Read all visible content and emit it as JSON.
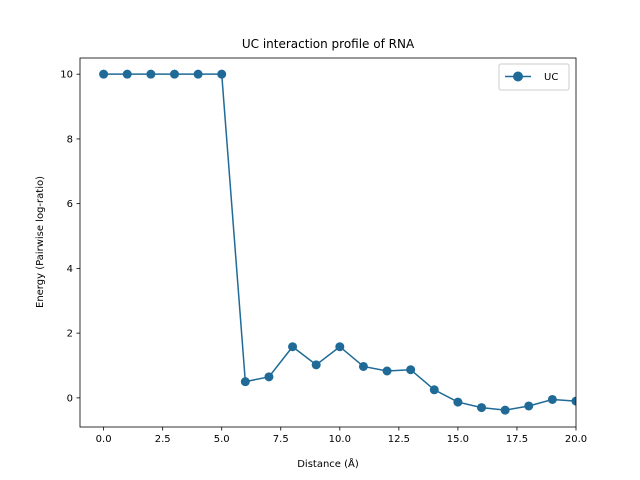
{
  "chart_data": {
    "type": "line",
    "title": "UC interaction profile of  RNA",
    "xlabel": "Distance (Å)",
    "ylabel": "Energy (Pairwise log-ratio)",
    "xlim": [
      -1,
      20
    ],
    "ylim": [
      -0.9,
      10.5
    ],
    "x_ticks": [
      0,
      2.5,
      5,
      7.5,
      10,
      12.5,
      15,
      17.5,
      20
    ],
    "x_tick_labels": [
      "0.0",
      "2.5",
      "5.0",
      "7.5",
      "10.0",
      "12.5",
      "15.0",
      "17.5",
      "20.0"
    ],
    "y_ticks": [
      0,
      2,
      4,
      6,
      8,
      10
    ],
    "y_tick_labels": [
      "0",
      "2",
      "4",
      "6",
      "8",
      "10"
    ],
    "grid": false,
    "legend_position": "top-right",
    "series": [
      {
        "name": "UC",
        "color": "#1f6a96",
        "marker": "circle",
        "x": [
          0,
          1,
          2,
          3,
          4,
          5,
          6,
          7,
          8,
          9,
          10,
          11,
          12,
          13,
          14,
          15,
          16,
          17,
          18,
          19,
          20
        ],
        "y": [
          10,
          10,
          10,
          10,
          10,
          10,
          0.5,
          0.65,
          1.58,
          1.02,
          1.58,
          0.97,
          0.83,
          0.87,
          0.25,
          -0.13,
          -0.3,
          -0.38,
          -0.25,
          -0.05,
          -0.1
        ]
      }
    ]
  }
}
